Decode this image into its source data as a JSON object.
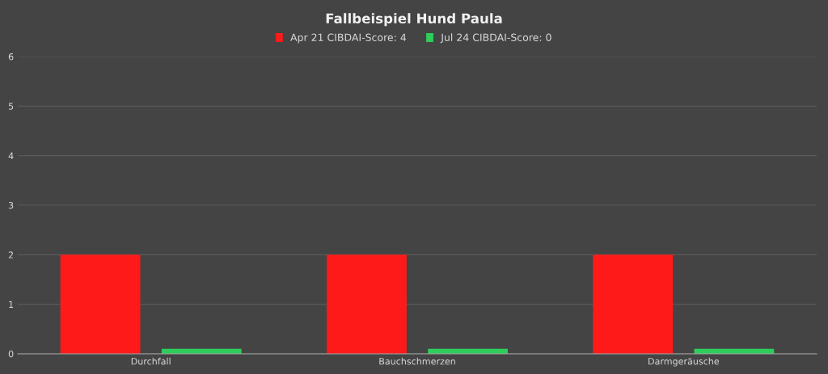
{
  "chart_data": {
    "type": "bar",
    "title": "Fallbeispiel Hund Paula",
    "categories": [
      "Durchfall",
      "Bauchschmerzen",
      "Darmgeräusche"
    ],
    "series": [
      {
        "name": "Apr 21 CIBDAI-Score: 4",
        "color": "#ff1a1a",
        "values": [
          2,
          2,
          2
        ]
      },
      {
        "name": "Jul 24 CIBDAI-Score: 0",
        "color": "#2ecc5a",
        "values": [
          0.1,
          0.1,
          0.1
        ]
      }
    ],
    "ylim": [
      0,
      6
    ],
    "yticks": [
      0,
      1,
      2,
      3,
      4,
      5,
      6
    ],
    "grid": "y",
    "legend": "top"
  }
}
